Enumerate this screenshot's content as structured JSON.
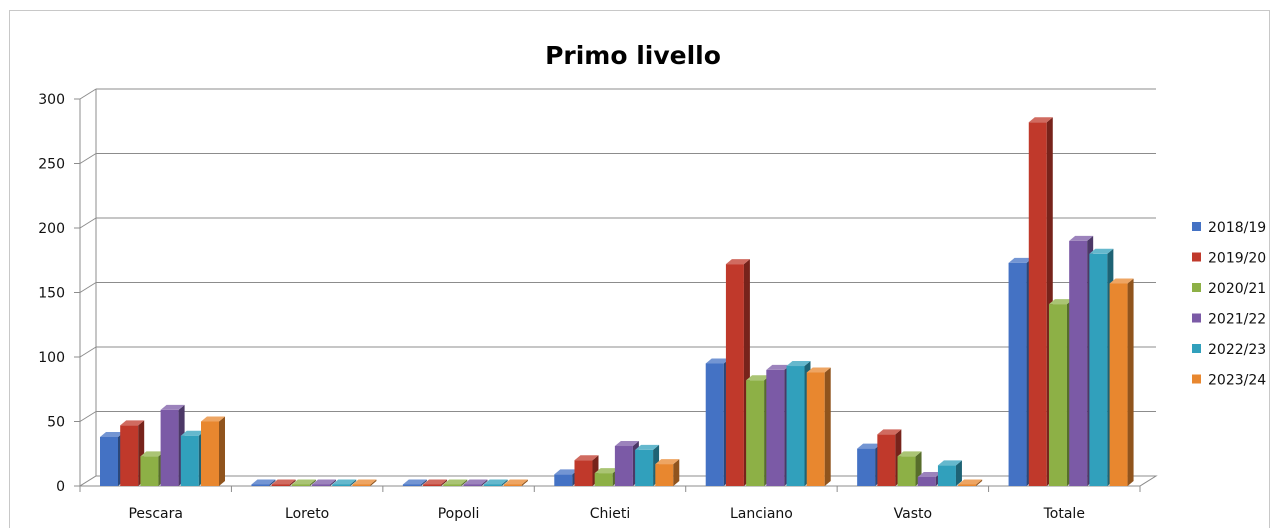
{
  "chart_data": {
    "type": "bar",
    "title": "Primo livello",
    "xlabel": "",
    "ylabel": "",
    "ylim": [
      0,
      300
    ],
    "yticks": [
      0,
      50,
      100,
      150,
      200,
      250,
      300
    ],
    "grid": true,
    "legend_position": "right",
    "three_d": true,
    "categories": [
      "Pescara",
      "Loreto",
      "Popoli",
      "Chieti",
      "Lanciano",
      "Vasto",
      "Totale"
    ],
    "series": [
      {
        "name": "2018/19",
        "color": "#4472c4",
        "values": [
          38,
          0,
          0,
          9,
          95,
          29,
          173
        ]
      },
      {
        "name": "2019/20",
        "color": "#c0392b",
        "values": [
          47,
          0,
          0,
          20,
          172,
          40,
          282
        ]
      },
      {
        "name": "2020/21",
        "color": "#8db046",
        "values": [
          23,
          0,
          0,
          10,
          82,
          23,
          141
        ]
      },
      {
        "name": "2021/22",
        "color": "#7b5aa6",
        "values": [
          59,
          0,
          0,
          31,
          90,
          7,
          190
        ]
      },
      {
        "name": "2022/23",
        "color": "#31a0bc",
        "values": [
          39,
          0,
          0,
          28,
          93,
          16,
          180
        ]
      },
      {
        "name": "2023/24",
        "color": "#e8872f",
        "values": [
          50,
          0,
          0,
          17,
          88,
          0,
          157
        ]
      }
    ]
  }
}
